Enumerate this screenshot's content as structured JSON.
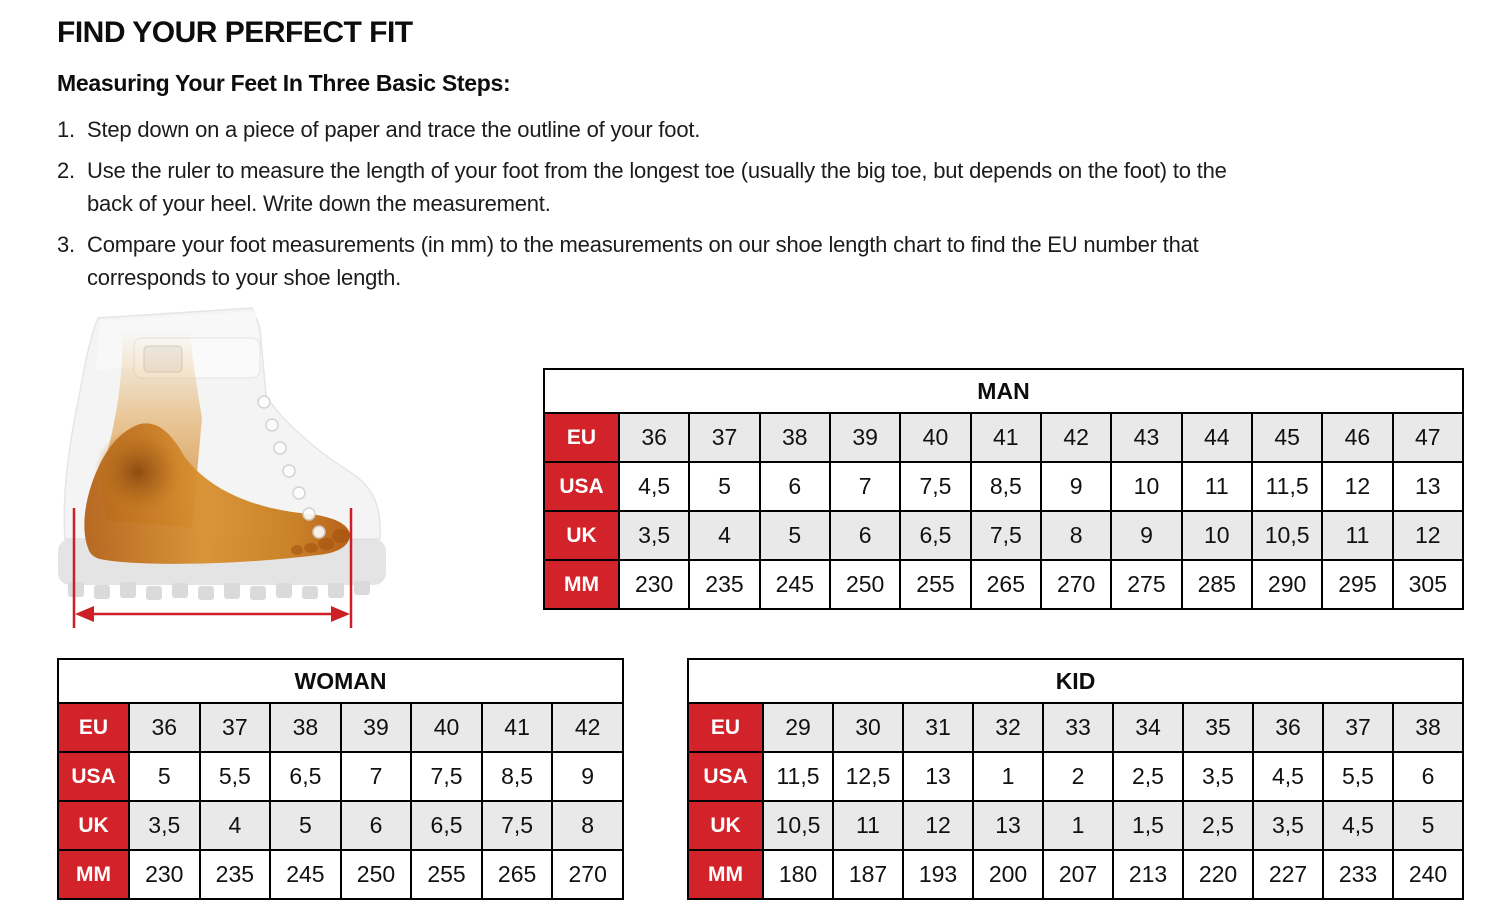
{
  "page": {
    "title": "FIND YOUR PERFECT FIT",
    "subtitle": "Measuring Your Feet In Three Basic Steps:",
    "steps": [
      {
        "num": "1.",
        "text": "Step down on a piece of paper and trace the outline of your foot."
      },
      {
        "num": "2.",
        "text": "Use the ruler to measure the length of your foot from the longest toe (usually the big toe, but depends on the foot) to the back of your heel. Write down the measurement."
      },
      {
        "num": "3.",
        "text": "Compare your foot measurements (in mm) to the measurements on our shoe length chart to find the EU number that corresponds to your shoe length."
      }
    ]
  },
  "figure": {
    "name": "boot-xray-foot-measurement",
    "description": "Translucent boot with visible foot and red length-measurement arrow"
  },
  "colors": {
    "accent_red": "#d2232a",
    "row_alt_gray": "#e9e9e9",
    "border_black": "#000000",
    "measure_red": "#cc1f26"
  },
  "chart_data": [
    {
      "type": "table",
      "title": "MAN",
      "row_labels": [
        "EU",
        "USA",
        "UK",
        "MM"
      ],
      "rows": [
        [
          "36",
          "37",
          "38",
          "39",
          "40",
          "41",
          "42",
          "43",
          "44",
          "45",
          "46",
          "47"
        ],
        [
          "4,5",
          "5",
          "6",
          "7",
          "7,5",
          "8,5",
          "9",
          "10",
          "11",
          "11,5",
          "12",
          "13"
        ],
        [
          "3,5",
          "4",
          "5",
          "6",
          "6,5",
          "7,5",
          "8",
          "9",
          "10",
          "10,5",
          "11",
          "12"
        ],
        [
          "230",
          "235",
          "245",
          "250",
          "255",
          "265",
          "270",
          "275",
          "285",
          "290",
          "295",
          "305"
        ]
      ]
    },
    {
      "type": "table",
      "title": "WOMAN",
      "row_labels": [
        "EU",
        "USA",
        "UK",
        "MM"
      ],
      "rows": [
        [
          "36",
          "37",
          "38",
          "39",
          "40",
          "41",
          "42"
        ],
        [
          "5",
          "5,5",
          "6,5",
          "7",
          "7,5",
          "8,5",
          "9"
        ],
        [
          "3,5",
          "4",
          "5",
          "6",
          "6,5",
          "7,5",
          "8"
        ],
        [
          "230",
          "235",
          "245",
          "250",
          "255",
          "265",
          "270"
        ]
      ]
    },
    {
      "type": "table",
      "title": "KID",
      "row_labels": [
        "EU",
        "USA",
        "UK",
        "MM"
      ],
      "rows": [
        [
          "29",
          "30",
          "31",
          "32",
          "33",
          "34",
          "35",
          "36",
          "37",
          "38"
        ],
        [
          "11,5",
          "12,5",
          "13",
          "1",
          "2",
          "2,5",
          "3,5",
          "4,5",
          "5,5",
          "6"
        ],
        [
          "10,5",
          "11",
          "12",
          "13",
          "1",
          "1,5",
          "2,5",
          "3,5",
          "4,5",
          "5"
        ],
        [
          "180",
          "187",
          "193",
          "200",
          "207",
          "213",
          "220",
          "227",
          "233",
          "240"
        ]
      ]
    }
  ],
  "tables": {
    "man_id": "0",
    "woman_id": "1",
    "kid_id": "2"
  }
}
